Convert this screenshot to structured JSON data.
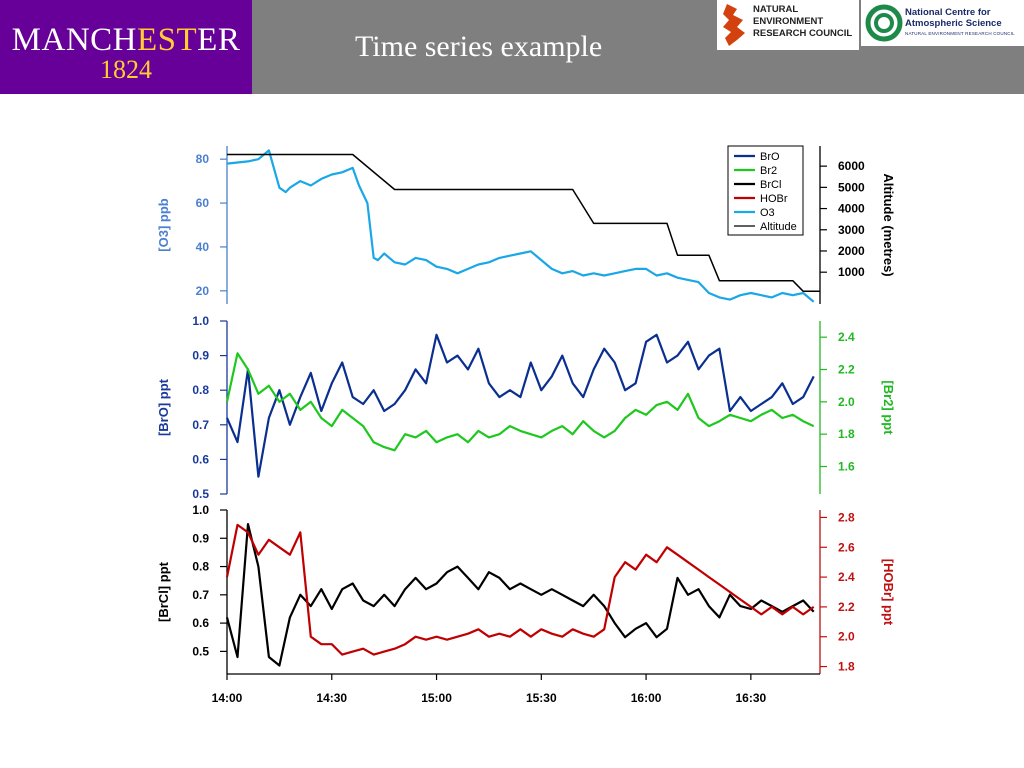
{
  "header": {
    "title": "Time series example",
    "university_name_a": "MANCH",
    "university_name_b": "EST",
    "university_name_c": "ER",
    "university_year": "1824",
    "nerc_lines": [
      "NATURAL",
      "ENVIRONMENT",
      "RESEARCH COUNCIL"
    ],
    "ncas_lines": [
      "National Centre for",
      "Atmospheric Science"
    ],
    "ncas_sub": "NATURAL ENVIRONMENT RESEARCH COUNCIL"
  },
  "colors": {
    "header_bg": "#7f7f7f",
    "manchester_purple": "#660099",
    "manchester_gold": "#ffcc33",
    "BrO": "#0a2f8f",
    "Br2": "#1fc81f",
    "BrCl": "#000000",
    "HOBr": "#c00000",
    "O3": "#1aa7e6",
    "Altitude": "#000000",
    "O3_axis": "#4a7fd0",
    "BrO_axis": "#1a3a9a",
    "Br2_axis": "#22b822",
    "HOBr_axis": "#c01010"
  },
  "chart_data": [
    {
      "type": "line",
      "panel": "top",
      "x_range_hours": [
        14.0,
        16.83
      ],
      "left_axis": {
        "label": "[O3] ppb",
        "range": [
          14,
          86
        ],
        "ticks": [
          20,
          40,
          60,
          80
        ]
      },
      "right_axis": {
        "label": "Altitude (metres)",
        "range": [
          -500,
          6950
        ],
        "ticks": [
          1000,
          2000,
          3000,
          4000,
          5000,
          6000
        ]
      },
      "legend": {
        "position": "top-right",
        "entries": [
          {
            "name": "BrO",
            "color": "#0a2f8f"
          },
          {
            "name": "Br2",
            "color": "#1fc81f"
          },
          {
            "name": "BrCl",
            "color": "#000000"
          },
          {
            "name": "HOBr",
            "color": "#c00000"
          },
          {
            "name": "O3",
            "color": "#1aa7e6"
          },
          {
            "name": "Altitude",
            "color": "#000000"
          }
        ]
      },
      "series": [
        {
          "name": "O3",
          "axis": "left",
          "x": [
            14.0,
            14.1,
            14.15,
            14.2,
            14.25,
            14.28,
            14.3,
            14.35,
            14.4,
            14.45,
            14.5,
            14.55,
            14.6,
            14.63,
            14.67,
            14.7,
            14.72,
            14.75,
            14.8,
            14.85,
            14.9,
            14.95,
            15.0,
            15.05,
            15.1,
            15.15,
            15.2,
            15.25,
            15.3,
            15.35,
            15.4,
            15.45,
            15.5,
            15.55,
            15.6,
            15.65,
            15.7,
            15.75,
            15.8,
            15.85,
            15.9,
            15.95,
            16.0,
            16.05,
            16.1,
            16.15,
            16.2,
            16.25,
            16.3,
            16.35,
            16.4,
            16.45,
            16.5,
            16.55,
            16.6,
            16.65,
            16.7,
            16.75,
            16.8
          ],
          "values": [
            78,
            79,
            80,
            84,
            67,
            65,
            67,
            70,
            68,
            71,
            73,
            74,
            76,
            68,
            60,
            35,
            34,
            37,
            33,
            32,
            35,
            34,
            31,
            30,
            28,
            30,
            32,
            33,
            35,
            36,
            37,
            38,
            34,
            30,
            28,
            29,
            27,
            28,
            27,
            28,
            29,
            30,
            30,
            27,
            28,
            26,
            25,
            24,
            19,
            17,
            16,
            18,
            19,
            18,
            17,
            19,
            18,
            19,
            15
          ]
        },
        {
          "name": "Altitude",
          "axis": "right",
          "x": [
            14.0,
            14.3,
            14.6,
            14.8,
            14.85,
            15.0,
            15.3,
            15.65,
            15.75,
            15.8,
            16.0,
            16.1,
            16.15,
            16.2,
            16.3,
            16.35,
            16.4,
            16.45,
            16.5,
            16.6,
            16.7,
            16.75,
            16.83
          ],
          "values": [
            6550,
            6550,
            6550,
            4900,
            4900,
            4900,
            4900,
            4900,
            3300,
            3300,
            3300,
            3300,
            1800,
            1800,
            1800,
            600,
            600,
            600,
            600,
            600,
            600,
            100,
            100
          ]
        }
      ]
    },
    {
      "type": "line",
      "panel": "middle",
      "x_range_hours": [
        14.0,
        16.83
      ],
      "left_axis": {
        "label": "[BrO] ppt",
        "range": [
          0.5,
          1.0
        ],
        "ticks": [
          0.5,
          0.6,
          0.7,
          0.8,
          0.9,
          1.0
        ]
      },
      "right_axis": {
        "label": "[Br2] ppt",
        "range": [
          1.43,
          2.5
        ],
        "ticks": [
          1.6,
          1.8,
          2.0,
          2.2,
          2.4
        ]
      },
      "series": [
        {
          "name": "BrO",
          "axis": "left",
          "x": [
            14.0,
            14.05,
            14.1,
            14.15,
            14.2,
            14.25,
            14.3,
            14.35,
            14.4,
            14.45,
            14.5,
            14.55,
            14.6,
            14.65,
            14.7,
            14.75,
            14.8,
            14.85,
            14.9,
            14.95,
            15.0,
            15.05,
            15.1,
            15.15,
            15.2,
            15.25,
            15.3,
            15.35,
            15.4,
            15.45,
            15.5,
            15.55,
            15.6,
            15.65,
            15.7,
            15.75,
            15.8,
            15.85,
            15.9,
            15.95,
            16.0,
            16.05,
            16.1,
            16.15,
            16.2,
            16.25,
            16.3,
            16.35,
            16.4,
            16.45,
            16.5,
            16.55,
            16.6,
            16.65,
            16.7,
            16.75,
            16.8
          ],
          "values": [
            0.72,
            0.65,
            0.86,
            0.55,
            0.72,
            0.8,
            0.7,
            0.78,
            0.85,
            0.74,
            0.82,
            0.88,
            0.78,
            0.76,
            0.8,
            0.74,
            0.76,
            0.8,
            0.86,
            0.82,
            0.96,
            0.88,
            0.9,
            0.86,
            0.92,
            0.82,
            0.78,
            0.8,
            0.78,
            0.88,
            0.8,
            0.84,
            0.9,
            0.82,
            0.78,
            0.86,
            0.92,
            0.88,
            0.8,
            0.82,
            0.94,
            0.96,
            0.88,
            0.9,
            0.94,
            0.86,
            0.9,
            0.92,
            0.74,
            0.78,
            0.74,
            0.76,
            0.78,
            0.82,
            0.76,
            0.78,
            0.84
          ]
        },
        {
          "name": "Br2",
          "axis": "right",
          "x": [
            14.0,
            14.05,
            14.1,
            14.15,
            14.2,
            14.25,
            14.3,
            14.35,
            14.4,
            14.45,
            14.5,
            14.55,
            14.6,
            14.65,
            14.7,
            14.75,
            14.8,
            14.85,
            14.9,
            14.95,
            15.0,
            15.05,
            15.1,
            15.15,
            15.2,
            15.25,
            15.3,
            15.35,
            15.4,
            15.45,
            15.5,
            15.55,
            15.6,
            15.65,
            15.7,
            15.75,
            15.8,
            15.85,
            15.9,
            15.95,
            16.0,
            16.05,
            16.1,
            16.15,
            16.2,
            16.25,
            16.3,
            16.35,
            16.4,
            16.45,
            16.5,
            16.55,
            16.6,
            16.65,
            16.7,
            16.75,
            16.8
          ],
          "values": [
            2.0,
            2.3,
            2.2,
            2.05,
            2.1,
            2.0,
            2.05,
            1.95,
            2.0,
            1.9,
            1.85,
            1.95,
            1.9,
            1.85,
            1.75,
            1.72,
            1.7,
            1.8,
            1.78,
            1.82,
            1.75,
            1.78,
            1.8,
            1.75,
            1.82,
            1.78,
            1.8,
            1.85,
            1.82,
            1.8,
            1.78,
            1.82,
            1.85,
            1.8,
            1.88,
            1.82,
            1.78,
            1.82,
            1.9,
            1.95,
            1.92,
            1.98,
            2.0,
            1.95,
            2.05,
            1.9,
            1.85,
            1.88,
            1.92,
            1.9,
            1.88,
            1.92,
            1.95,
            1.9,
            1.92,
            1.88,
            1.85
          ]
        }
      ]
    },
    {
      "type": "line",
      "panel": "bottom",
      "x_range_hours": [
        14.0,
        16.83
      ],
      "x_ticks": [
        "14:00",
        "14:30",
        "15:00",
        "15:30",
        "16:00",
        "16:30"
      ],
      "x_tick_values": [
        14.0,
        14.5,
        15.0,
        15.5,
        16.0,
        16.5
      ],
      "left_axis": {
        "label": "[BrCl] ppt",
        "range": [
          0.42,
          1.0
        ],
        "ticks": [
          0.5,
          0.6,
          0.7,
          0.8,
          0.9,
          1.0
        ]
      },
      "right_axis": {
        "label": "[HOBr] ppt",
        "range": [
          1.75,
          2.85
        ],
        "ticks": [
          1.8,
          2.0,
          2.2,
          2.4,
          2.6,
          2.8
        ]
      },
      "series": [
        {
          "name": "BrCl",
          "axis": "left",
          "x": [
            14.0,
            14.05,
            14.1,
            14.15,
            14.2,
            14.25,
            14.3,
            14.35,
            14.4,
            14.45,
            14.5,
            14.55,
            14.6,
            14.65,
            14.7,
            14.75,
            14.8,
            14.85,
            14.9,
            14.95,
            15.0,
            15.05,
            15.1,
            15.15,
            15.2,
            15.25,
            15.3,
            15.35,
            15.4,
            15.45,
            15.5,
            15.55,
            15.6,
            15.65,
            15.7,
            15.75,
            15.8,
            15.85,
            15.9,
            15.95,
            16.0,
            16.05,
            16.1,
            16.15,
            16.2,
            16.25,
            16.3,
            16.35,
            16.4,
            16.45,
            16.5,
            16.55,
            16.6,
            16.65,
            16.7,
            16.75,
            16.8
          ],
          "values": [
            0.62,
            0.48,
            0.95,
            0.8,
            0.48,
            0.45,
            0.62,
            0.7,
            0.66,
            0.72,
            0.65,
            0.72,
            0.74,
            0.68,
            0.66,
            0.7,
            0.66,
            0.72,
            0.76,
            0.72,
            0.74,
            0.78,
            0.8,
            0.76,
            0.72,
            0.78,
            0.76,
            0.72,
            0.74,
            0.72,
            0.7,
            0.72,
            0.7,
            0.68,
            0.66,
            0.7,
            0.66,
            0.6,
            0.55,
            0.58,
            0.6,
            0.55,
            0.58,
            0.76,
            0.7,
            0.72,
            0.66,
            0.62,
            0.7,
            0.66,
            0.65,
            0.68,
            0.66,
            0.64,
            0.66,
            0.68,
            0.64
          ]
        },
        {
          "name": "HOBr",
          "axis": "right",
          "x": [
            14.0,
            14.05,
            14.1,
            14.15,
            14.2,
            14.25,
            14.3,
            14.35,
            14.4,
            14.45,
            14.5,
            14.55,
            14.6,
            14.65,
            14.7,
            14.75,
            14.8,
            14.85,
            14.9,
            14.95,
            15.0,
            15.05,
            15.1,
            15.15,
            15.2,
            15.25,
            15.3,
            15.35,
            15.4,
            15.45,
            15.5,
            15.55,
            15.6,
            15.65,
            15.7,
            15.75,
            15.8,
            15.85,
            15.9,
            15.95,
            16.0,
            16.05,
            16.1,
            16.15,
            16.2,
            16.25,
            16.3,
            16.35,
            16.4,
            16.45,
            16.5,
            16.55,
            16.6,
            16.65,
            16.7,
            16.75,
            16.8
          ],
          "values": [
            2.4,
            2.75,
            2.7,
            2.55,
            2.65,
            2.6,
            2.55,
            2.7,
            2.0,
            1.95,
            1.95,
            1.88,
            1.9,
            1.92,
            1.88,
            1.9,
            1.92,
            1.95,
            2.0,
            1.98,
            2.0,
            1.98,
            2.0,
            2.02,
            2.05,
            2.0,
            2.02,
            2.0,
            2.05,
            2.0,
            2.05,
            2.02,
            2.0,
            2.05,
            2.02,
            2.0,
            2.05,
            2.4,
            2.5,
            2.45,
            2.55,
            2.5,
            2.6,
            2.55,
            2.5,
            2.45,
            2.4,
            2.35,
            2.3,
            2.25,
            2.2,
            2.15,
            2.2,
            2.15,
            2.2,
            2.15,
            2.2
          ]
        }
      ]
    }
  ]
}
